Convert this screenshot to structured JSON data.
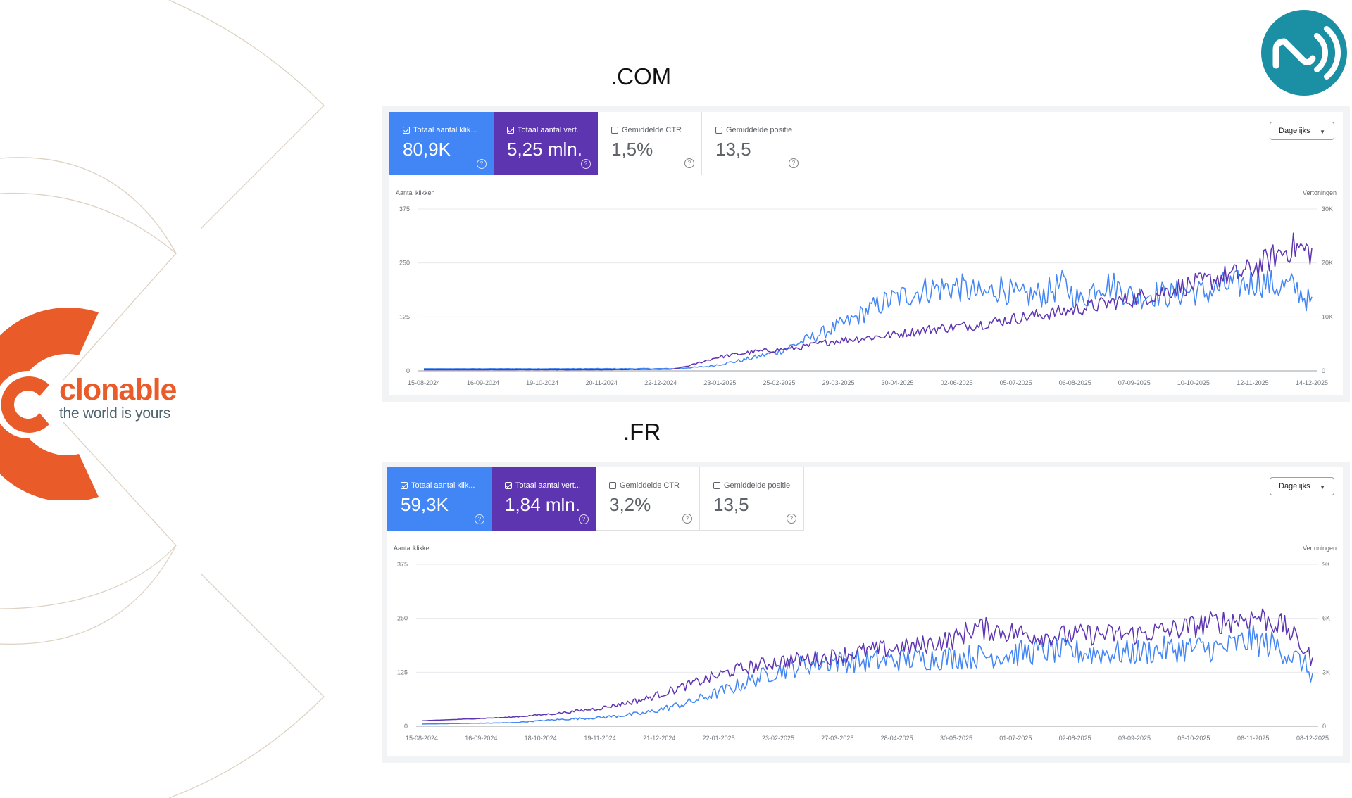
{
  "brand": {
    "name": "clonable",
    "tagline": "the world is yours",
    "accent": "#ea5b2a",
    "badge_color": "#1b8fa3"
  },
  "colors": {
    "clicks": "#4285f4",
    "impressions": "#5e35b1"
  },
  "panels": [
    {
      "title": ".COM",
      "metrics": [
        {
          "label": "Totaal aantal klik...",
          "value": "80,9K",
          "checked": true,
          "style": "blue"
        },
        {
          "label": "Totaal aantal vert...",
          "value": "5,25 mln.",
          "checked": true,
          "style": "purple"
        },
        {
          "label": "Gemiddelde CTR",
          "value": "1,5%",
          "checked": false,
          "style": "plain"
        },
        {
          "label": "Gemiddelde positie",
          "value": "13,5",
          "checked": false,
          "style": "plain"
        }
      ],
      "period": "Dagelijks"
    },
    {
      "title": ".FR",
      "metrics": [
        {
          "label": "Totaal aantal klik...",
          "value": "59,3K",
          "checked": true,
          "style": "blue"
        },
        {
          "label": "Totaal aantal vert...",
          "value": "1,84 mln.",
          "checked": true,
          "style": "purple"
        },
        {
          "label": "Gemiddelde CTR",
          "value": "3,2%",
          "checked": false,
          "style": "plain"
        },
        {
          "label": "Gemiddelde positie",
          "value": "13,5",
          "checked": false,
          "style": "plain"
        }
      ],
      "period": "Dagelijks"
    }
  ],
  "chart_data": [
    {
      "type": "line",
      "ylabel": "Aantal klikken",
      "y2label": "Vertoningen",
      "ylim": [
        0,
        375
      ],
      "yticks": [
        "0",
        "125",
        "250",
        "375"
      ],
      "y2lim": [
        0,
        30000
      ],
      "y2ticks": [
        "0",
        "10K",
        "20K",
        "30K"
      ],
      "xticks": [
        "15-08-2024",
        "16-09-2024",
        "19-10-2024",
        "20-11-2024",
        "22-12-2024",
        "23-01-2025",
        "25-02-2025",
        "29-03-2025",
        "30-04-2025",
        "02-06-2025",
        "05-07-2025",
        "06-08-2025",
        "07-09-2025",
        "10-10-2025",
        "12-11-2025",
        "14-12-2025"
      ],
      "grid": true,
      "series": [
        {
          "axis": "left",
          "color": "#4285f4",
          "anchors": [
            [
              0,
              5
            ],
            [
              20,
              5
            ],
            [
              28,
              5
            ],
            [
              32,
              10
            ],
            [
              36,
              25
            ],
            [
              40,
              45
            ],
            [
              44,
              80
            ],
            [
              48,
              115
            ],
            [
              50,
              140
            ],
            [
              52,
              160
            ],
            [
              55,
              180
            ],
            [
              57,
              190
            ],
            [
              60,
              195
            ],
            [
              63,
              175
            ],
            [
              65,
              195
            ],
            [
              67,
              170
            ],
            [
              70,
              180
            ],
            [
              72,
              200
            ],
            [
              74,
              160
            ],
            [
              76,
              205
            ],
            [
              78,
              195
            ],
            [
              80,
              170
            ],
            [
              82,
              180
            ],
            [
              84,
              175
            ],
            [
              86,
              185
            ],
            [
              88,
              180
            ],
            [
              90,
              195
            ],
            [
              92,
              200
            ],
            [
              94,
              210
            ],
            [
              96,
              195
            ],
            [
              98,
              195
            ],
            [
              100,
              155
            ]
          ]
        },
        {
          "axis": "right",
          "color": "#5e35b1",
          "anchors": [
            [
              0,
              200
            ],
            [
              20,
              200
            ],
            [
              28,
              300
            ],
            [
              30,
              1000
            ],
            [
              33,
              2500
            ],
            [
              37,
              3500
            ],
            [
              42,
              4200
            ],
            [
              46,
              5500
            ],
            [
              52,
              6500
            ],
            [
              57,
              7700
            ],
            [
              62,
              8500
            ],
            [
              67,
              9800
            ],
            [
              72,
              11000
            ],
            [
              77,
              12500
            ],
            [
              82,
              14000
            ],
            [
              85,
              15500
            ],
            [
              88,
              16500
            ],
            [
              90,
              17500
            ],
            [
              92,
              18000
            ],
            [
              94,
              19500
            ],
            [
              96,
              21500
            ],
            [
              98,
              23000
            ],
            [
              100,
              22000
            ]
          ]
        }
      ]
    },
    {
      "type": "line",
      "ylabel": "Aantal klikken",
      "y2label": "Vertoningen",
      "ylim": [
        0,
        375
      ],
      "yticks": [
        "0",
        "125",
        "250",
        "375"
      ],
      "y2lim": [
        0,
        9000
      ],
      "y2ticks": [
        "0",
        "3K",
        "6K",
        "9K"
      ],
      "xticks": [
        "15-08-2024",
        "16-09-2024",
        "18-10-2024",
        "19-11-2024",
        "21-12-2024",
        "22-01-2025",
        "23-02-2025",
        "27-03-2025",
        "28-04-2025",
        "30-05-2025",
        "01-07-2025",
        "02-08-2025",
        "03-09-2025",
        "05-10-2025",
        "06-11-2025",
        "08-12-2025"
      ],
      "grid": true,
      "series": [
        {
          "axis": "left",
          "color": "#4285f4",
          "anchors": [
            [
              0,
              5
            ],
            [
              10,
              8
            ],
            [
              15,
              15
            ],
            [
              20,
              20
            ],
            [
              25,
              30
            ],
            [
              30,
              55
            ],
            [
              35,
              90
            ],
            [
              40,
              130
            ],
            [
              45,
              150
            ],
            [
              50,
              150
            ],
            [
              55,
              155
            ],
            [
              60,
              160
            ],
            [
              65,
              165
            ],
            [
              70,
              175
            ],
            [
              75,
              170
            ],
            [
              80,
              170
            ],
            [
              85,
              180
            ],
            [
              90,
              180
            ],
            [
              93,
              200
            ],
            [
              96,
              185
            ],
            [
              99,
              145
            ],
            [
              100,
              115
            ]
          ]
        },
        {
          "axis": "right",
          "color": "#5e35b1",
          "anchors": [
            [
              0,
              300
            ],
            [
              10,
              500
            ],
            [
              15,
              700
            ],
            [
              20,
              1000
            ],
            [
              25,
              1500
            ],
            [
              30,
              2300
            ],
            [
              35,
              3100
            ],
            [
              40,
              3600
            ],
            [
              45,
              3800
            ],
            [
              50,
              4200
            ],
            [
              55,
              4400
            ],
            [
              60,
              4900
            ],
            [
              62,
              5500
            ],
            [
              65,
              5300
            ],
            [
              70,
              5000
            ],
            [
              75,
              5100
            ],
            [
              80,
              5100
            ],
            [
              85,
              5400
            ],
            [
              88,
              5700
            ],
            [
              91,
              5900
            ],
            [
              94,
              6100
            ],
            [
              97,
              5500
            ],
            [
              100,
              3700
            ]
          ]
        }
      ]
    }
  ]
}
